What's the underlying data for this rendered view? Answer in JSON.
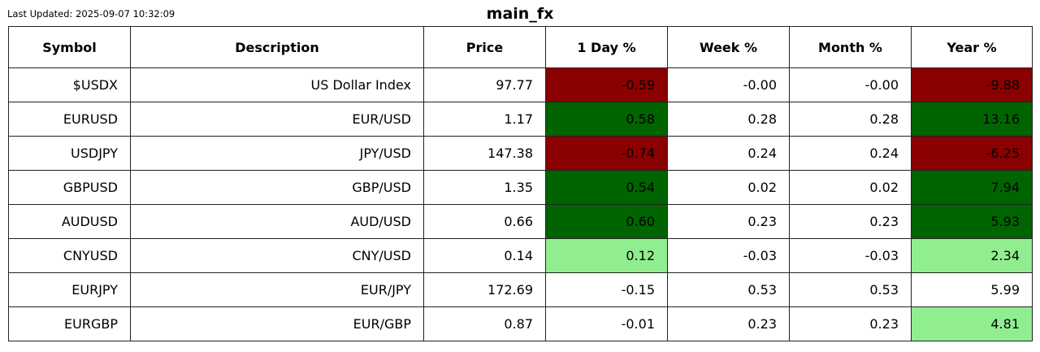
{
  "header": {
    "last_updated": "Last Updated: 2025-09-07 10:32:09",
    "title": "main_fx"
  },
  "colors": {
    "strong_negative": "#8b0000",
    "strong_positive": "#006400",
    "mild_positive": "#90ee90",
    "neutral": "#ffffff"
  },
  "chart_data": {
    "type": "table",
    "title": "main_fx",
    "columns": [
      "Symbol",
      "Description",
      "Price",
      "1 Day %",
      "Week %",
      "Month %",
      "Year %"
    ],
    "rows": [
      {
        "symbol": "$USDX",
        "description": "US Dollar Index",
        "price": "97.77",
        "day": "-0.59",
        "week": "-0.00",
        "month": "-0.00",
        "year": "-9.88",
        "day_color": "#8b0000",
        "year_color": "#8b0000"
      },
      {
        "symbol": "EURUSD",
        "description": "EUR/USD",
        "price": "1.17",
        "day": "0.58",
        "week": "0.28",
        "month": "0.28",
        "year": "13.16",
        "day_color": "#006400",
        "year_color": "#006400"
      },
      {
        "symbol": "USDJPY",
        "description": "JPY/USD",
        "price": "147.38",
        "day": "-0.74",
        "week": "0.24",
        "month": "0.24",
        "year": "-6.25",
        "day_color": "#8b0000",
        "year_color": "#8b0000"
      },
      {
        "symbol": "GBPUSD",
        "description": "GBP/USD",
        "price": "1.35",
        "day": "0.54",
        "week": "0.02",
        "month": "0.02",
        "year": "7.94",
        "day_color": "#006400",
        "year_color": "#006400"
      },
      {
        "symbol": "AUDUSD",
        "description": "AUD/USD",
        "price": "0.66",
        "day": "0.60",
        "week": "0.23",
        "month": "0.23",
        "year": "5.93",
        "day_color": "#006400",
        "year_color": "#006400"
      },
      {
        "symbol": "CNYUSD",
        "description": "CNY/USD",
        "price": "0.14",
        "day": "0.12",
        "week": "-0.03",
        "month": "-0.03",
        "year": "2.34",
        "day_color": "#90ee90",
        "year_color": "#90ee90"
      },
      {
        "symbol": "EURJPY",
        "description": "EUR/JPY",
        "price": "172.69",
        "day": "-0.15",
        "week": "0.53",
        "month": "0.53",
        "year": "5.99",
        "day_color": "#ffffff",
        "year_color": "#ffffff"
      },
      {
        "symbol": "EURGBP",
        "description": "EUR/GBP",
        "price": "0.87",
        "day": "-0.01",
        "week": "0.23",
        "month": "0.23",
        "year": "4.81",
        "day_color": "#ffffff",
        "year_color": "#90ee90"
      }
    ]
  }
}
